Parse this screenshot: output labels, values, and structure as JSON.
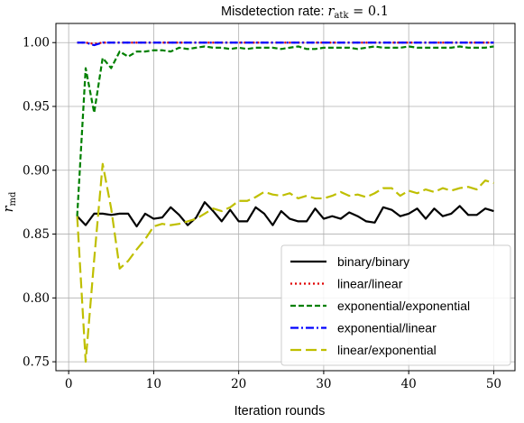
{
  "chart_data": {
    "type": "line",
    "title_prefix": "Misdetection rate: ",
    "title_math_var": "r",
    "title_math_sub": "atk",
    "title_math_rest": " = 0.1",
    "xlabel": "Iteration rounds",
    "ylabel_var": "r",
    "ylabel_sub": "md",
    "xlim": [
      -1.5,
      52.5
    ],
    "ylim": [
      0.743,
      1.015
    ],
    "xticks": [
      0,
      10,
      20,
      30,
      40,
      50
    ],
    "xtick_labels": [
      "0",
      "10",
      "20",
      "30",
      "40",
      "50"
    ],
    "yticks": [
      0.75,
      0.8,
      0.85,
      0.9,
      0.95,
      1.0
    ],
    "ytick_labels": [
      "0.75",
      "0.80",
      "0.85",
      "0.90",
      "0.95",
      "1.00"
    ],
    "grid": true,
    "legend_position": "bottom-right",
    "x": [
      1,
      2,
      3,
      4,
      5,
      6,
      7,
      8,
      9,
      10,
      11,
      12,
      13,
      14,
      15,
      16,
      17,
      18,
      19,
      20,
      21,
      22,
      23,
      24,
      25,
      26,
      27,
      28,
      29,
      30,
      31,
      32,
      33,
      34,
      35,
      36,
      37,
      38,
      39,
      40,
      41,
      42,
      43,
      44,
      45,
      46,
      47,
      48,
      49,
      50
    ],
    "series": [
      {
        "name": "binary/binary",
        "color": "#000000",
        "dash": "solid",
        "values": [
          0.864,
          0.857,
          0.866,
          0.866,
          0.865,
          0.866,
          0.866,
          0.856,
          0.866,
          0.862,
          0.863,
          0.871,
          0.865,
          0.857,
          0.863,
          0.875,
          0.868,
          0.86,
          0.869,
          0.86,
          0.86,
          0.871,
          0.866,
          0.857,
          0.868,
          0.862,
          0.86,
          0.86,
          0.87,
          0.862,
          0.864,
          0.862,
          0.867,
          0.864,
          0.86,
          0.859,
          0.871,
          0.869,
          0.864,
          0.866,
          0.87,
          0.862,
          0.87,
          0.864,
          0.866,
          0.872,
          0.865,
          0.865,
          0.87,
          0.868
        ]
      },
      {
        "name": "linear/linear",
        "color": "#e00000",
        "dash": "dotted",
        "values": [
          1.0,
          1.0,
          0.999,
          1.0,
          1.0,
          1.0,
          1.0,
          1.0,
          1.0,
          1.0,
          1.0,
          1.0,
          1.0,
          1.0,
          1.0,
          1.0,
          1.0,
          1.0,
          1.0,
          1.0,
          1.0,
          1.0,
          1.0,
          1.0,
          1.0,
          1.0,
          1.0,
          1.0,
          1.0,
          1.0,
          1.0,
          1.0,
          1.0,
          1.0,
          1.0,
          1.0,
          1.0,
          1.0,
          1.0,
          1.0,
          1.0,
          1.0,
          1.0,
          1.0,
          1.0,
          1.0,
          1.0,
          1.0,
          1.0,
          1.0
        ]
      },
      {
        "name": "exponential/exponential",
        "color": "#008000",
        "dash": "dashed",
        "values": [
          0.864,
          0.98,
          0.945,
          0.988,
          0.98,
          0.993,
          0.989,
          0.993,
          0.993,
          0.994,
          0.994,
          0.993,
          0.996,
          0.995,
          0.996,
          0.997,
          0.996,
          0.996,
          0.995,
          0.996,
          0.995,
          0.996,
          0.996,
          0.996,
          0.995,
          0.996,
          0.997,
          0.995,
          0.995,
          0.996,
          0.996,
          0.996,
          0.996,
          0.995,
          0.996,
          0.997,
          0.996,
          0.996,
          0.996,
          0.997,
          0.996,
          0.996,
          0.996,
          0.996,
          0.996,
          0.997,
          0.996,
          0.996,
          0.996,
          0.997
        ]
      },
      {
        "name": "exponential/linear",
        "color": "#0000ff",
        "dash": "dashdot",
        "values": [
          1.0,
          1.0,
          0.998,
          1.0,
          1.0,
          1.0,
          1.0,
          1.0,
          1.0,
          1.0,
          1.0,
          1.0,
          1.0,
          1.0,
          1.0,
          1.0,
          1.0,
          1.0,
          1.0,
          1.0,
          1.0,
          1.0,
          1.0,
          1.0,
          1.0,
          1.0,
          1.0,
          1.0,
          1.0,
          1.0,
          1.0,
          1.0,
          1.0,
          1.0,
          1.0,
          1.0,
          1.0,
          1.0,
          1.0,
          1.0,
          1.0,
          1.0,
          1.0,
          1.0,
          1.0,
          1.0,
          1.0,
          1.0,
          1.0,
          1.0
        ]
      },
      {
        "name": "linear/exponential",
        "color": "#bfbf00",
        "dash": "longdash",
        "values": [
          0.864,
          0.75,
          0.83,
          0.905,
          0.87,
          0.823,
          0.829,
          0.838,
          0.846,
          0.856,
          0.858,
          0.857,
          0.858,
          0.86,
          0.862,
          0.866,
          0.87,
          0.868,
          0.871,
          0.876,
          0.876,
          0.879,
          0.883,
          0.881,
          0.88,
          0.882,
          0.878,
          0.88,
          0.878,
          0.878,
          0.88,
          0.883,
          0.88,
          0.881,
          0.879,
          0.882,
          0.886,
          0.886,
          0.88,
          0.884,
          0.882,
          0.885,
          0.883,
          0.886,
          0.884,
          0.886,
          0.887,
          0.885,
          0.892,
          0.89
        ]
      }
    ]
  }
}
